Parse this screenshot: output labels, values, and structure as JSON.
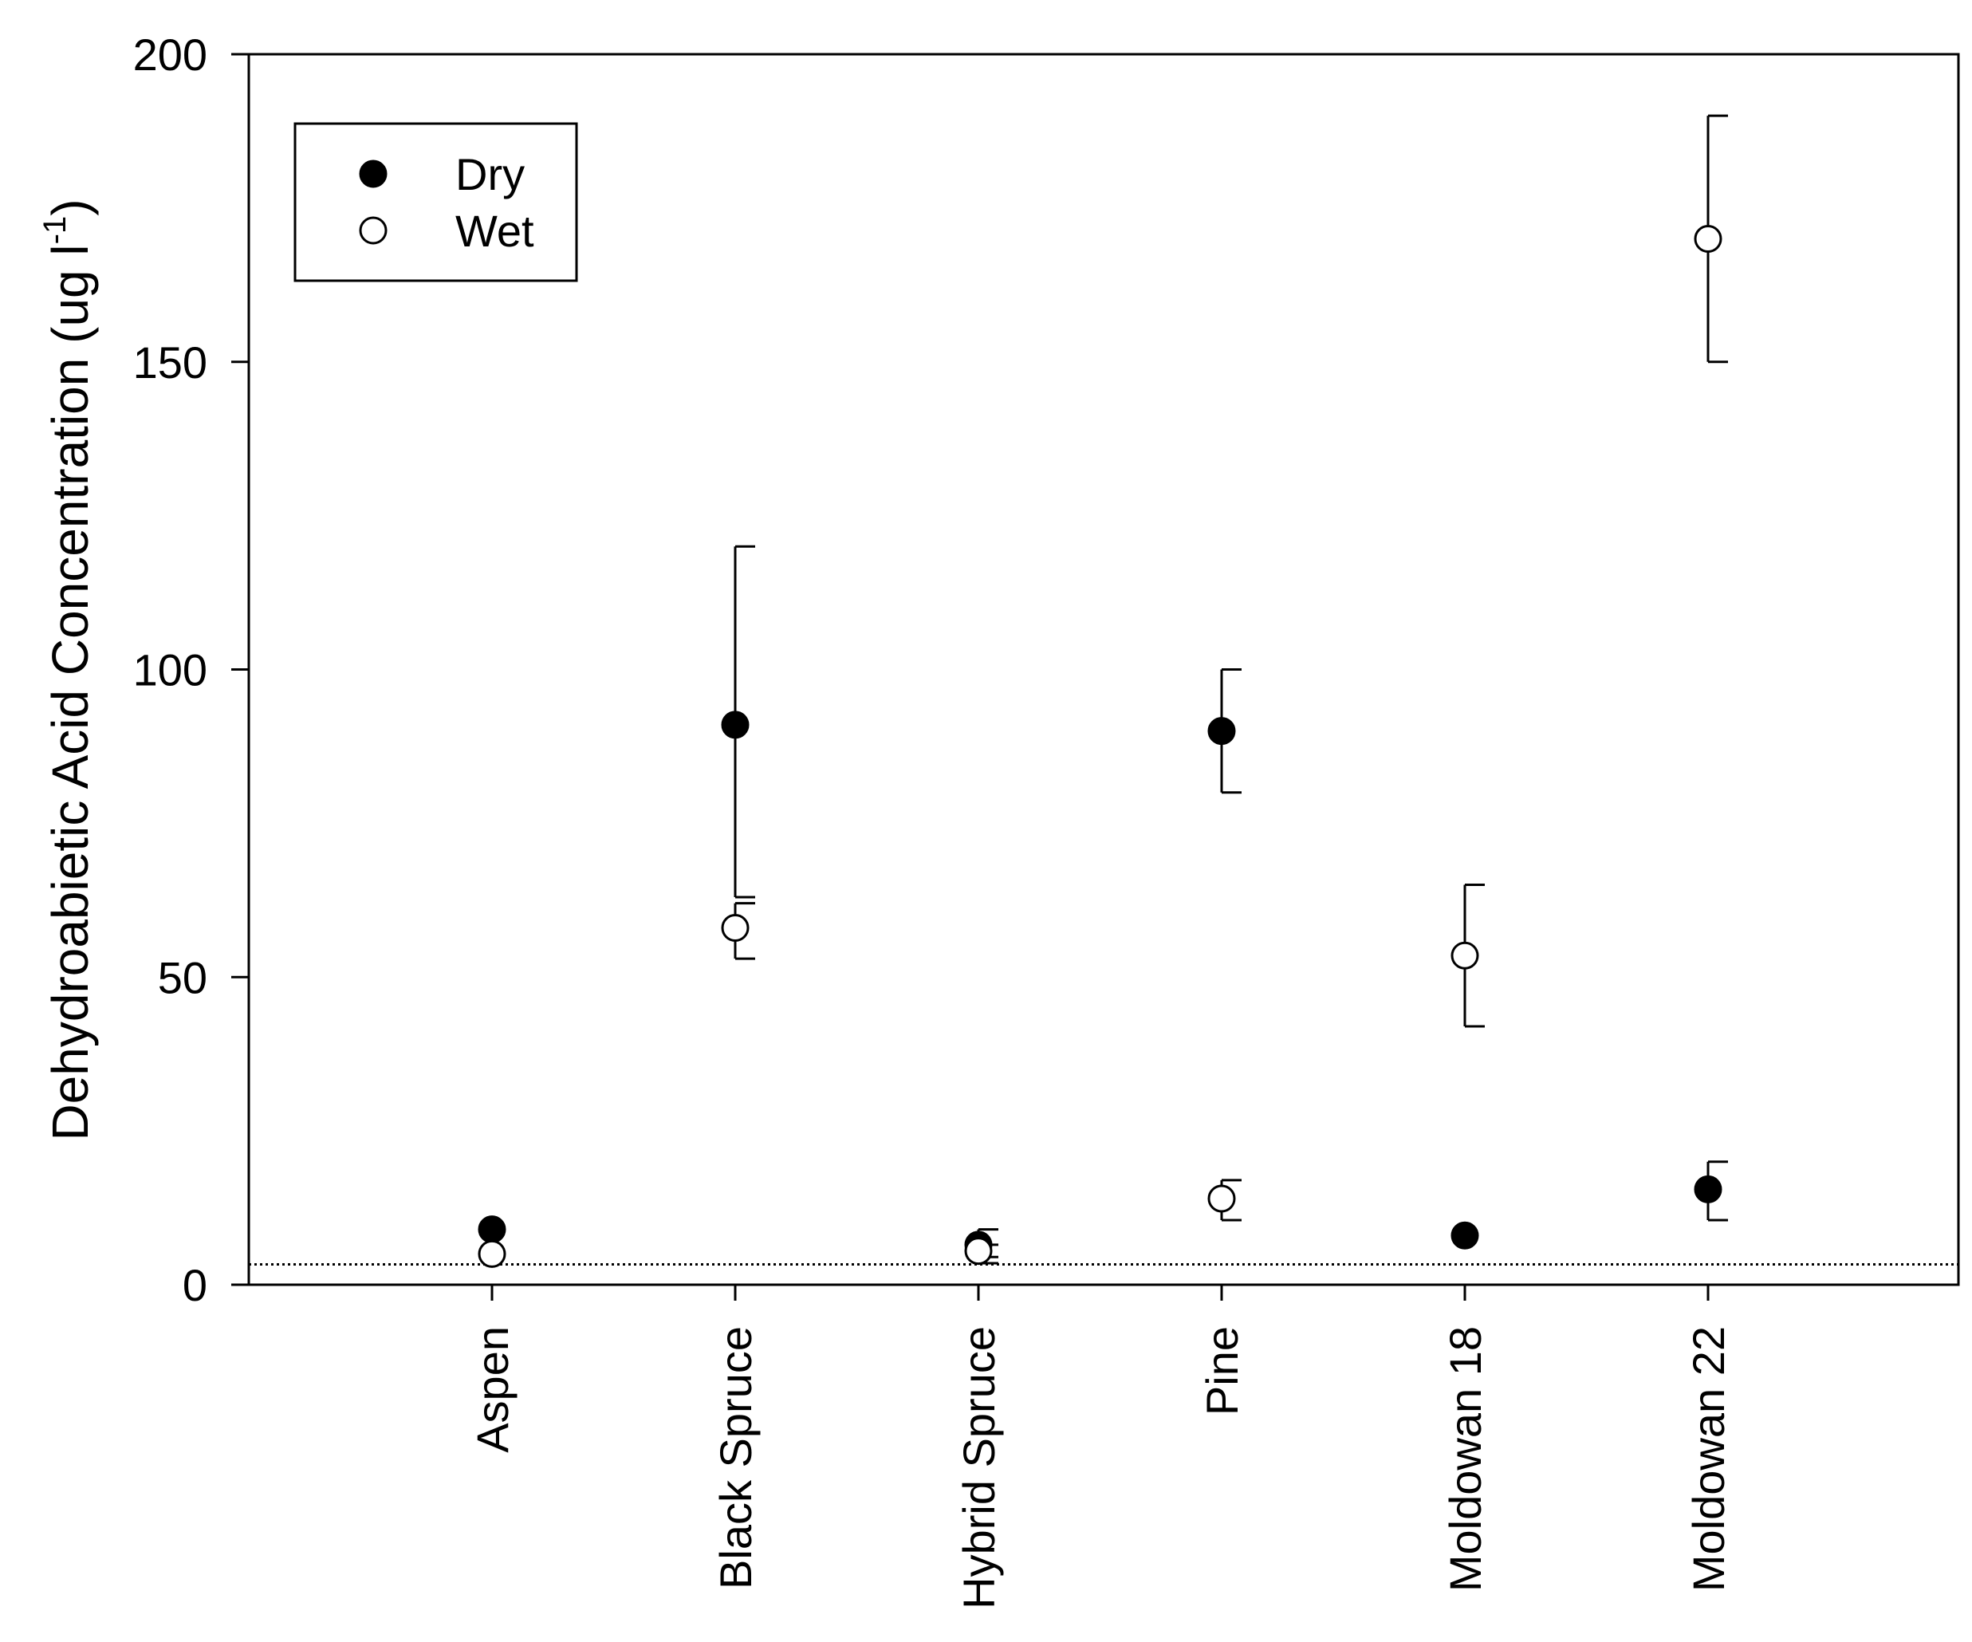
{
  "chart_data": {
    "type": "scatter",
    "title": "",
    "xlabel": "",
    "ylabel": "Dehydroabietic Acid Concentration (ug l",
    "ylabel_superscript": "-1",
    "ylabel_suffix": ")",
    "ylim": [
      0,
      200
    ],
    "yticks": [
      "0",
      "50",
      "100",
      "150",
      "200"
    ],
    "ytick_values": [
      0,
      50,
      100,
      150,
      200
    ],
    "grid": false,
    "legend_position": "top-left",
    "categories": [
      "Aspen",
      "Black Spruce",
      "Hybrid Spruce",
      "Pine",
      "Moldowan 18",
      "Moldowan 22"
    ],
    "detection_limit": 3.3,
    "series": [
      {
        "name": "Dry",
        "marker": "filled-circle",
        "values": [
          9,
          91,
          6.5,
          90,
          8,
          15.5
        ],
        "err_low": [
          null,
          63,
          4.5,
          80,
          null,
          10.5
        ],
        "err_high": [
          null,
          120,
          9,
          100,
          null,
          20
        ]
      },
      {
        "name": "Wet",
        "marker": "open-circle",
        "values": [
          5,
          58,
          5.5,
          14,
          53.5,
          170
        ],
        "err_low": [
          null,
          53,
          3.5,
          10.5,
          42,
          150
        ],
        "err_high": [
          null,
          62,
          6.5,
          17,
          65,
          190
        ]
      }
    ]
  },
  "colors": {
    "axis": "#000000",
    "dry_fill": "#000000",
    "wet_fill": "#ffffff"
  }
}
